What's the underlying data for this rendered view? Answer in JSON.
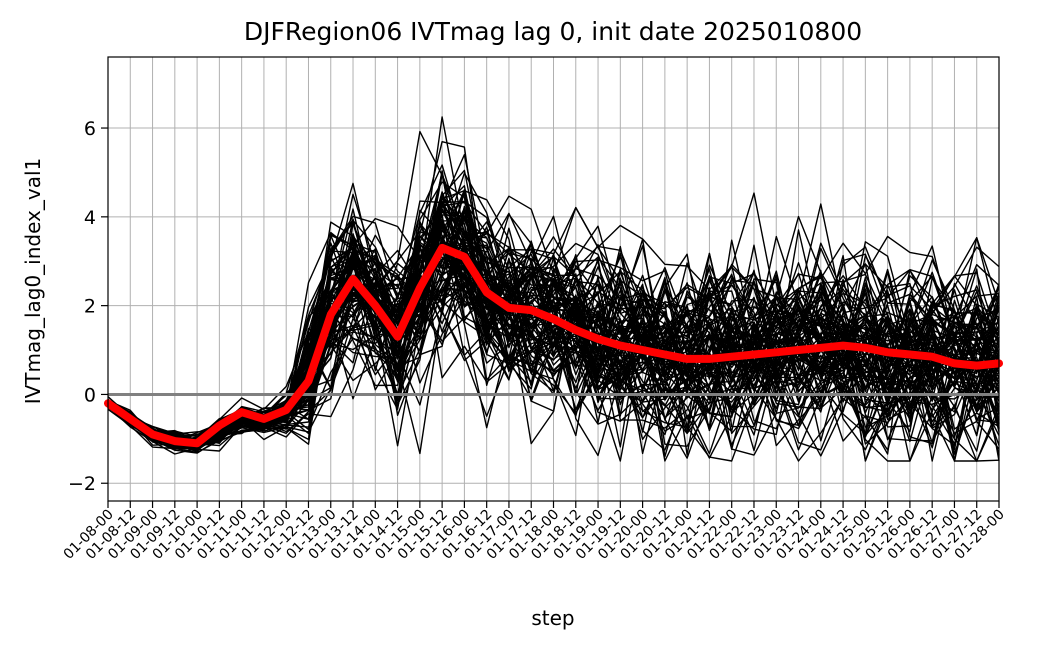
{
  "chart_data": {
    "type": "line",
    "title": "DJFRegion06 IVTmag lag 0, init date 2025010800",
    "xlabel": "step",
    "ylabel": "IVTmag_lag0_index_val1",
    "categories": [
      "01-08-00",
      "01-08-12",
      "01-09-00",
      "01-09-12",
      "01-10-00",
      "01-10-12",
      "01-11-00",
      "01-11-12",
      "01-12-00",
      "01-12-12",
      "01-13-00",
      "01-13-12",
      "01-14-00",
      "01-14-12",
      "01-15-00",
      "01-15-12",
      "01-16-00",
      "01-16-12",
      "01-17-00",
      "01-17-12",
      "01-18-00",
      "01-18-12",
      "01-19-00",
      "01-19-12",
      "01-20-00",
      "01-20-12",
      "01-21-00",
      "01-21-12",
      "01-22-00",
      "01-22-12",
      "01-23-00",
      "01-23-12",
      "01-24-00",
      "01-24-12",
      "01-25-00",
      "01-25-12",
      "01-26-00",
      "01-26-12",
      "01-27-00",
      "01-27-12",
      "01-28-00"
    ],
    "ylim": [
      -2.4,
      7.6
    ],
    "yticks": [
      -2,
      0,
      2,
      4,
      6
    ],
    "grid": true,
    "zero_line": {
      "value": 0,
      "color": "#808080"
    },
    "ensemble": {
      "member_count": 100,
      "color": "#000000",
      "mean_profile": [
        -0.2,
        -0.55,
        -0.9,
        -1.05,
        -1.1,
        -0.8,
        -0.55,
        -0.6,
        -0.4,
        0.4,
        1.9,
        2.6,
        2.0,
        1.4,
        2.4,
        3.3,
        3.1,
        2.3,
        1.95,
        1.9,
        1.7,
        1.5,
        1.3,
        1.15,
        1.05,
        0.95,
        0.9,
        0.9,
        0.95,
        0.95,
        1.0,
        1.05,
        1.05,
        1.1,
        1.0,
        0.9,
        0.9,
        0.85,
        0.75,
        0.7,
        0.75
      ],
      "spread_profile": [
        0.05,
        0.08,
        0.1,
        0.1,
        0.1,
        0.15,
        0.15,
        0.15,
        0.2,
        0.7,
        0.9,
        0.9,
        0.8,
        1.0,
        1.2,
        1.1,
        1.0,
        1.0,
        1.0,
        1.0,
        1.0,
        1.0,
        1.0,
        1.0,
        1.0,
        1.0,
        1.05,
        1.05,
        1.05,
        1.05,
        1.05,
        1.05,
        1.05,
        1.1,
        1.1,
        1.1,
        1.1,
        1.1,
        1.1,
        1.1,
        1.1
      ]
    },
    "series": [
      {
        "color": "#ff0000",
        "values": [
          -0.2,
          -0.55,
          -0.9,
          -1.05,
          -1.1,
          -0.7,
          -0.4,
          -0.55,
          -0.35,
          0.3,
          1.8,
          2.6,
          2.0,
          1.3,
          2.4,
          3.3,
          3.1,
          2.3,
          1.95,
          1.9,
          1.7,
          1.45,
          1.25,
          1.1,
          1.0,
          0.9,
          0.8,
          0.8,
          0.85,
          0.9,
          0.95,
          1.0,
          1.05,
          1.1,
          1.05,
          0.95,
          0.9,
          0.85,
          0.7,
          0.65,
          0.7
        ]
      }
    ]
  }
}
